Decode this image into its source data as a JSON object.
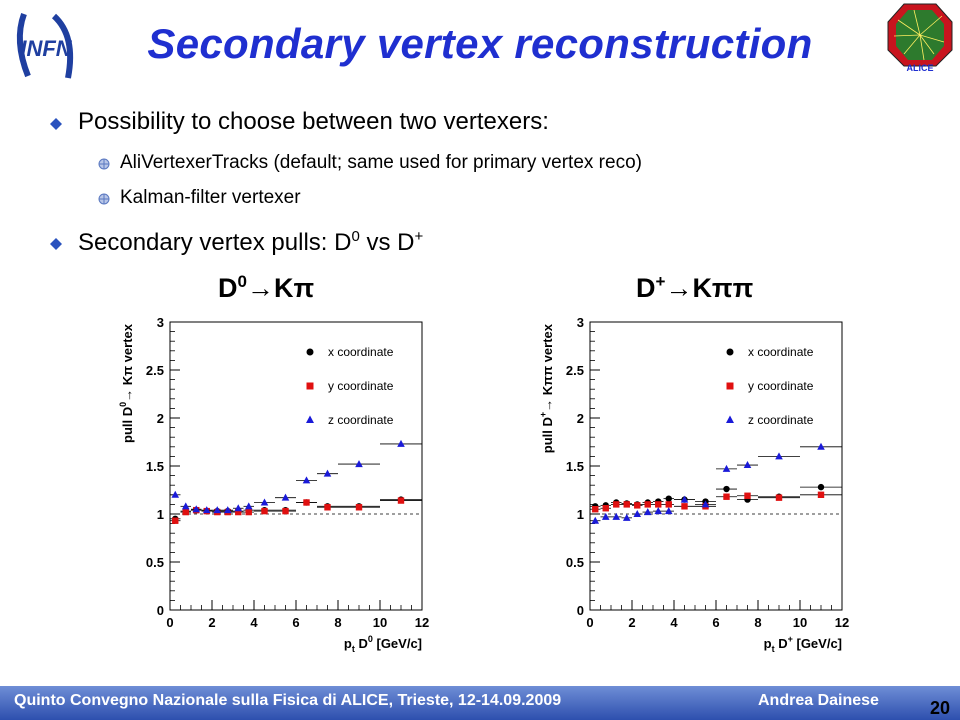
{
  "header": {
    "title": "Secondary vertex reconstruction",
    "logo_left_text": "INFN",
    "logo_right_text": "ALICE"
  },
  "bullets": {
    "b1": "Possibility to choose between two vertexers:",
    "b1_sub1": "AliVertexerTracks (default; same used for primary vertex reco)",
    "b1_sub2": "Kalman-filter vertexer",
    "b2_prefix": "Secondary vertex pulls: D",
    "b2_sup1": "0",
    "b2_mid": " vs D",
    "b2_sup2": "+"
  },
  "subtitles": {
    "left_base": "D",
    "left_sup": "0",
    "left_arrow": "→",
    "left_rest": "Kπ",
    "right_base": "D",
    "right_sup": "+",
    "right_arrow": "→",
    "right_rest": "Kππ"
  },
  "colors": {
    "title": "#1f2fd0",
    "x_series": "#000000",
    "y_series": "#e01010",
    "z_series": "#1a1ad8",
    "footer": "#3b5cb8"
  },
  "chart_data": [
    {
      "type": "scatter",
      "ylabel_prefix": "pull D",
      "ylabel_sup": "0",
      "ylabel_rest": "→ Kπ vertex",
      "xlabel_main": "p",
      "xlabel_sub": "t",
      "xlabel_rest": " D",
      "xlabel_sup": "0",
      "xlabel_unit": " [GeV/c]",
      "xlim": [
        0,
        12
      ],
      "ylim": [
        0,
        3
      ],
      "xticks": [
        "0",
        "2",
        "4",
        "6",
        "8",
        "10",
        "12"
      ],
      "yticks": [
        "0",
        "0.5",
        "1",
        "1.5",
        "2",
        "2.5",
        "3"
      ],
      "reference_line": 1,
      "legend_position": "top-right",
      "series": [
        {
          "name": "x coordinate",
          "marker": "circle",
          "x": [
            0.25,
            0.75,
            1.25,
            1.75,
            2.25,
            2.75,
            3.25,
            3.75,
            4.5,
            5.5,
            6.5,
            7.5,
            9.0,
            11.0
          ],
          "y": [
            0.95,
            1.03,
            1.04,
            1.03,
            1.03,
            1.03,
            1.03,
            1.04,
            1.04,
            1.04,
            1.12,
            1.08,
            1.08,
            1.15
          ],
          "xerr": [
            0.25,
            0.25,
            0.25,
            0.25,
            0.25,
            0.25,
            0.25,
            0.25,
            0.5,
            0.5,
            0.5,
            0.5,
            1.0,
            1.0
          ]
        },
        {
          "name": "y coordinate",
          "marker": "square",
          "x": [
            0.25,
            0.75,
            1.25,
            1.75,
            2.25,
            2.75,
            3.25,
            3.75,
            4.5,
            5.5,
            6.5,
            7.5,
            9.0,
            11.0
          ],
          "y": [
            0.93,
            1.02,
            1.04,
            1.03,
            1.02,
            1.02,
            1.02,
            1.02,
            1.03,
            1.03,
            1.12,
            1.07,
            1.07,
            1.14
          ],
          "xerr": [
            0.25,
            0.25,
            0.25,
            0.25,
            0.25,
            0.25,
            0.25,
            0.25,
            0.5,
            0.5,
            0.5,
            0.5,
            1.0,
            1.0
          ]
        },
        {
          "name": "z coordinate",
          "marker": "triangle",
          "x": [
            0.25,
            0.75,
            1.25,
            1.75,
            2.25,
            2.75,
            3.25,
            3.75,
            4.5,
            5.5,
            6.5,
            7.5,
            9.0,
            11.0
          ],
          "y": [
            1.2,
            1.08,
            1.05,
            1.04,
            1.04,
            1.04,
            1.06,
            1.08,
            1.12,
            1.17,
            1.35,
            1.42,
            1.52,
            1.73
          ],
          "xerr": [
            0.25,
            0.25,
            0.25,
            0.25,
            0.25,
            0.25,
            0.25,
            0.25,
            0.5,
            0.5,
            0.5,
            0.5,
            1.0,
            1.0
          ]
        }
      ]
    },
    {
      "type": "scatter",
      "ylabel_prefix": "pull D",
      "ylabel_sup": "+",
      "ylabel_rest": "→ Kππ vertex",
      "xlabel_main": "p",
      "xlabel_sub": "t",
      "xlabel_rest": " D",
      "xlabel_sup": "+",
      "xlabel_unit": " [GeV/c]",
      "xlim": [
        0,
        12
      ],
      "ylim": [
        0,
        3
      ],
      "xticks": [
        "0",
        "2",
        "4",
        "6",
        "8",
        "10",
        "12"
      ],
      "yticks": [
        "0",
        "0.5",
        "1",
        "1.5",
        "2",
        "2.5",
        "3"
      ],
      "reference_line": 1,
      "legend_position": "top-right",
      "series": [
        {
          "name": "x coordinate",
          "marker": "circle",
          "x": [
            0.25,
            0.75,
            1.25,
            1.75,
            2.25,
            2.75,
            3.25,
            3.75,
            4.5,
            5.5,
            6.5,
            7.5,
            9.0,
            11.0
          ],
          "y": [
            1.08,
            1.09,
            1.12,
            1.11,
            1.1,
            1.12,
            1.13,
            1.16,
            1.15,
            1.13,
            1.26,
            1.15,
            1.18,
            1.28
          ],
          "xerr": [
            0.25,
            0.25,
            0.25,
            0.25,
            0.25,
            0.25,
            0.25,
            0.25,
            0.5,
            0.5,
            0.5,
            0.5,
            1.0,
            1.0
          ]
        },
        {
          "name": "y coordinate",
          "marker": "square",
          "x": [
            0.25,
            0.75,
            1.25,
            1.75,
            2.25,
            2.75,
            3.25,
            3.75,
            4.5,
            5.5,
            6.5,
            7.5,
            9.0,
            11.0
          ],
          "y": [
            1.05,
            1.06,
            1.1,
            1.1,
            1.09,
            1.1,
            1.1,
            1.1,
            1.08,
            1.08,
            1.18,
            1.19,
            1.17,
            1.2
          ],
          "xerr": [
            0.25,
            0.25,
            0.25,
            0.25,
            0.25,
            0.25,
            0.25,
            0.25,
            0.5,
            0.5,
            0.5,
            0.5,
            1.0,
            1.0
          ]
        },
        {
          "name": "z coordinate",
          "marker": "triangle",
          "x": [
            0.25,
            0.75,
            1.25,
            1.75,
            2.25,
            2.75,
            3.25,
            3.75,
            4.5,
            5.5,
            6.5,
            7.5,
            9.0,
            11.0
          ],
          "y": [
            0.93,
            0.97,
            0.97,
            0.96,
            1.0,
            1.02,
            1.03,
            1.03,
            1.15,
            1.1,
            1.47,
            1.51,
            1.6,
            1.7
          ],
          "xerr": [
            0.25,
            0.25,
            0.25,
            0.25,
            0.25,
            0.25,
            0.25,
            0.25,
            0.5,
            0.5,
            0.5,
            0.5,
            1.0,
            1.0
          ]
        }
      ]
    }
  ],
  "footer": {
    "conference": "Quinto Convegno Nazionale sulla Fisica di ALICE, Trieste, 12-14.09.2009",
    "author": "Andrea Dainese",
    "page_number": "20"
  }
}
